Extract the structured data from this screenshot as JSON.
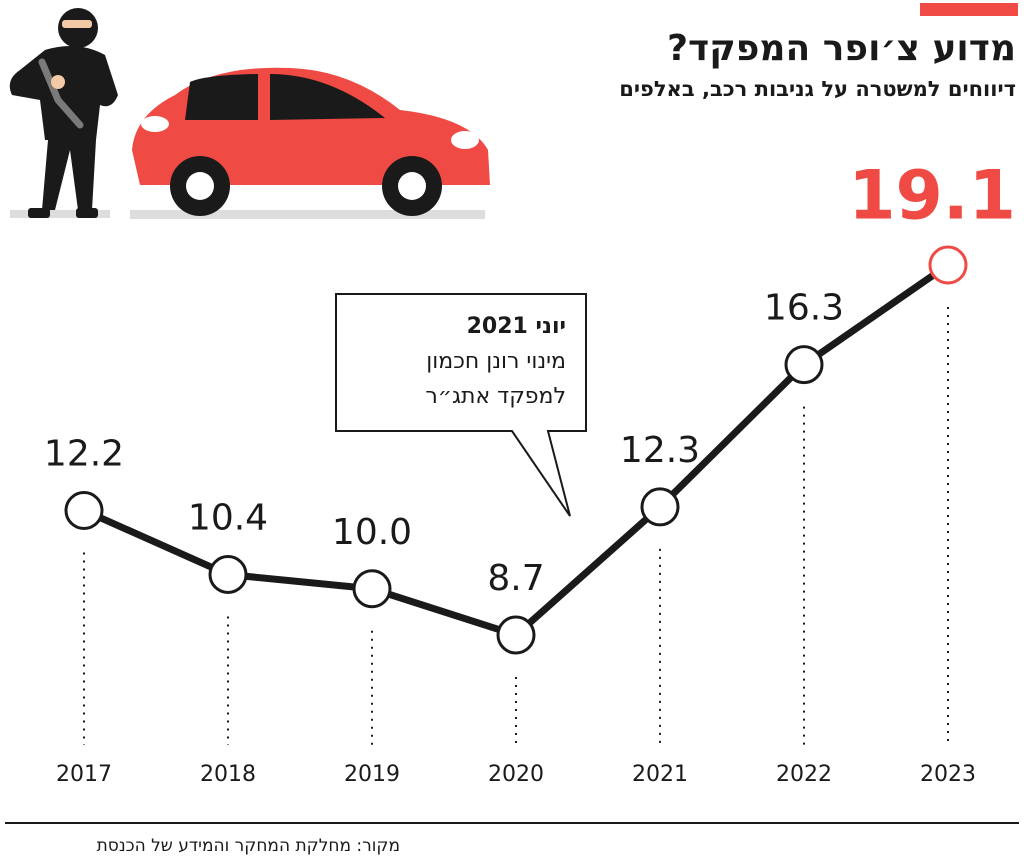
{
  "chart_data": {
    "type": "line",
    "title": "מדוע צ׳ופר המפקד?",
    "subtitle": "דיווחים למשטרה על גניבות רכב, באלפים",
    "categories": [
      "2017",
      "2018",
      "2019",
      "2020",
      "2021",
      "2022",
      "2023"
    ],
    "values": [
      12.2,
      10.4,
      10.0,
      8.7,
      12.3,
      16.3,
      19.1
    ],
    "value_labels": [
      "12.2",
      "10.4",
      "10.0",
      "8.7",
      "12.3",
      "16.3",
      "19.1"
    ],
    "color": "#1a1a1a",
    "highlight": {
      "index": 6,
      "color": "#ef4a43"
    },
    "annotation": {
      "title": "יוני 2021",
      "lines": [
        "מינוי רונן חכמון",
        "למפקד אתג״ר"
      ]
    },
    "source": "מקור: מחלקת המחקר והמידע של הכנסת"
  }
}
